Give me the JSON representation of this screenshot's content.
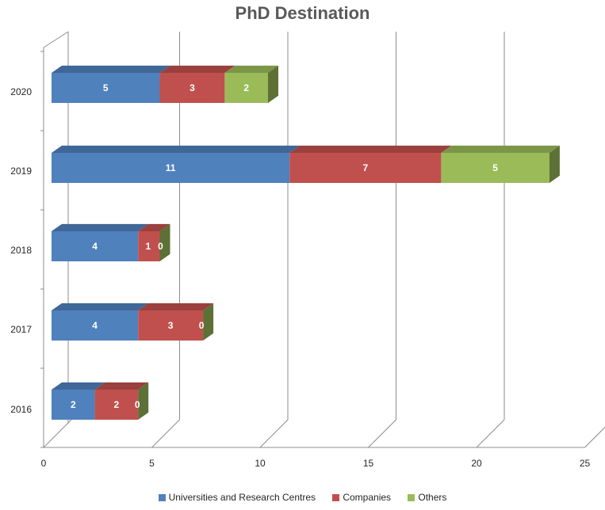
{
  "chart_data": {
    "type": "bar",
    "orientation": "horizontal",
    "stacked": true,
    "style": "3d",
    "title": "PhD Destination",
    "xlabel": "",
    "ylabel": "",
    "categories": [
      "2016",
      "2017",
      "2018",
      "2019",
      "2020"
    ],
    "xlim": [
      0,
      25
    ],
    "xticks": [
      0,
      5,
      10,
      15,
      20,
      25
    ],
    "grid": true,
    "legend": "bottom",
    "series": [
      {
        "name": "Universities and Research Centres",
        "color": "#4F81BD",
        "values": [
          2,
          4,
          4,
          11,
          5
        ]
      },
      {
        "name": "Companies",
        "color": "#C0504D",
        "values": [
          2,
          3,
          1,
          7,
          3
        ]
      },
      {
        "name": "Others",
        "color": "#9BBB59",
        "values": [
          0,
          0,
          0,
          5,
          2
        ]
      }
    ]
  }
}
